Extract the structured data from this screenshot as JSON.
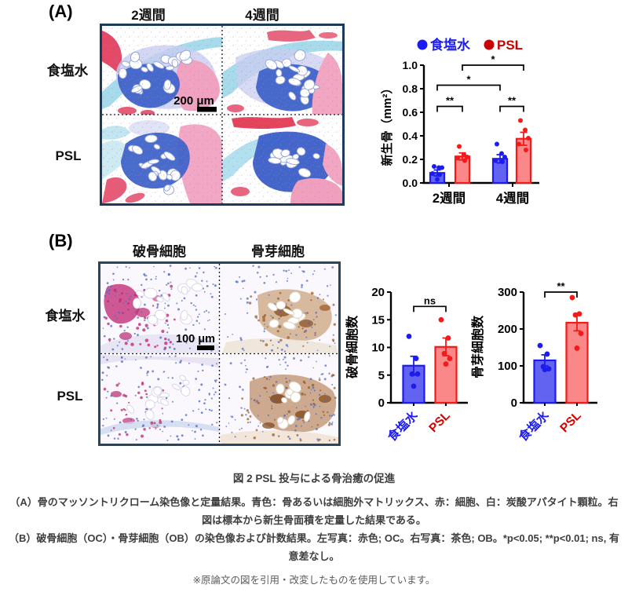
{
  "panel_a": {
    "label": "(A)",
    "col_headers": [
      "2週間",
      "4週間"
    ],
    "row_headers": [
      "食塩水",
      "PSL"
    ],
    "scale_bar": "200 μm",
    "stain": "マッソントリクローム染色"
  },
  "panel_b": {
    "label": "(B)",
    "col_headers": [
      "破骨細胞",
      "骨芽細胞"
    ],
    "row_headers": [
      "食塩水",
      "PSL"
    ],
    "scale_bar": "100 μm"
  },
  "caption": {
    "title": "図 2 PSL 投与による骨治癒の促進",
    "line_a": "（A）骨のマッソントリクローム染色像と定量結果。青色：骨あるいは細胞外マトリックス、赤：細胞、白：炭酸アパタイト顆粒。右図は標本から新生骨面積を定量した結果である。",
    "line_b": "（B）破骨細胞（OC）・骨芽細胞（OB）の染色像および計数結果。左写真：赤色; OC。右写真：茶色; OB。*p<0.05; **p<0.01; ns, 有意差なし。",
    "note": "※原論文の図を引用・改変したものを使用しています。"
  },
  "colors": {
    "saline_blue": "#1c1cf0",
    "saline_fill": "#6363f2",
    "psl_red": "#f51a1a",
    "psl_fill": "#fa8888",
    "legend_saline_text": "#1c1cf0",
    "legend_psl_text": "#cb0000",
    "caption_text": "#3e3e3e"
  },
  "chart_data": [
    {
      "type": "bar",
      "title": "",
      "ylabel": "新生骨（mm²）",
      "xlabel": "",
      "categories": [
        "2週間",
        "4週間"
      ],
      "series": [
        {
          "name": "食塩水",
          "color": "#1c1cf0",
          "fill": "#6363f2",
          "values": [
            0.085,
            0.205
          ],
          "sem": [
            0.025,
            0.035
          ],
          "points": [
            [
              0.14,
              0.13,
              0.13,
              0.08,
              0.07,
              0.03
            ],
            [
              0.33,
              0.25,
              0.22,
              0.19,
              0.18
            ]
          ]
        },
        {
          "name": "PSL",
          "color": "#f51a1a",
          "fill": "#fa8888",
          "values": [
            0.225,
            0.375
          ],
          "sem": [
            0.03,
            0.055
          ],
          "points": [
            [
              0.31,
              0.24,
              0.22,
              0.21,
              0.19
            ],
            [
              0.53,
              0.45,
              0.38,
              0.33,
              0.28
            ]
          ]
        }
      ],
      "ylim": [
        0,
        1.0
      ],
      "yticks": [
        0.0,
        0.2,
        0.4,
        0.6,
        0.8,
        1.0
      ],
      "grid": false,
      "legend_position": "top",
      "significance": [
        {
          "bars": [
            0,
            1
          ],
          "y": 0.65,
          "label": "**",
          "between": "食塩水2週間 vs PSL2週間"
        },
        {
          "bars": [
            2,
            3
          ],
          "y": 0.65,
          "label": "**",
          "between": "食塩水4週間 vs PSL4週間"
        },
        {
          "bars": [
            0,
            2
          ],
          "y": 0.83,
          "label": "*",
          "between": "食塩水2週間 vs 食塩水4週間"
        },
        {
          "bars": [
            1,
            3
          ],
          "y": 1.0,
          "label": "*",
          "between": "PSL2週間 vs PSL4週間"
        }
      ]
    },
    {
      "type": "bar",
      "title": "",
      "ylabel": "破骨細胞数",
      "xlabel": "",
      "categories": [
        "食塩水",
        "PSL"
      ],
      "values": [
        6.7,
        10.1
      ],
      "sem": [
        1.7,
        1.6
      ],
      "points": [
        [
          12,
          8,
          5.2,
          5.2,
          3
        ],
        [
          15,
          11.7,
          8.9,
          8,
          7
        ]
      ],
      "bar_colors": [
        "#1c1cf0",
        "#f51a1a"
      ],
      "bar_fills": [
        "#6363f2",
        "#fa8888"
      ],
      "ylim": [
        0,
        20
      ],
      "yticks": [
        0,
        5,
        10,
        15,
        20
      ],
      "grid": false,
      "significance": [
        {
          "bars": [
            0,
            1
          ],
          "y": 17.4,
          "label": "ns",
          "between": "食塩水 vs PSL"
        }
      ]
    },
    {
      "type": "bar",
      "title": "",
      "ylabel": "骨芽細胞数",
      "xlabel": "",
      "categories": [
        "食塩水",
        "PSL"
      ],
      "values": [
        115,
        217
      ],
      "sem": [
        15,
        22
      ],
      "points": [
        [
          155,
          132,
          98,
          92,
          90
        ],
        [
          285,
          241,
          238,
          188,
          148
        ]
      ],
      "bar_colors": [
        "#1c1cf0",
        "#f51a1a"
      ],
      "bar_fills": [
        "#6363f2",
        "#fa8888"
      ],
      "ylim": [
        0,
        300
      ],
      "yticks": [
        0,
        100,
        200,
        300
      ],
      "grid": false,
      "significance": [
        {
          "bars": [
            0,
            1
          ],
          "y": 300,
          "label": "**",
          "between": "食塩水 vs PSL"
        }
      ]
    }
  ]
}
